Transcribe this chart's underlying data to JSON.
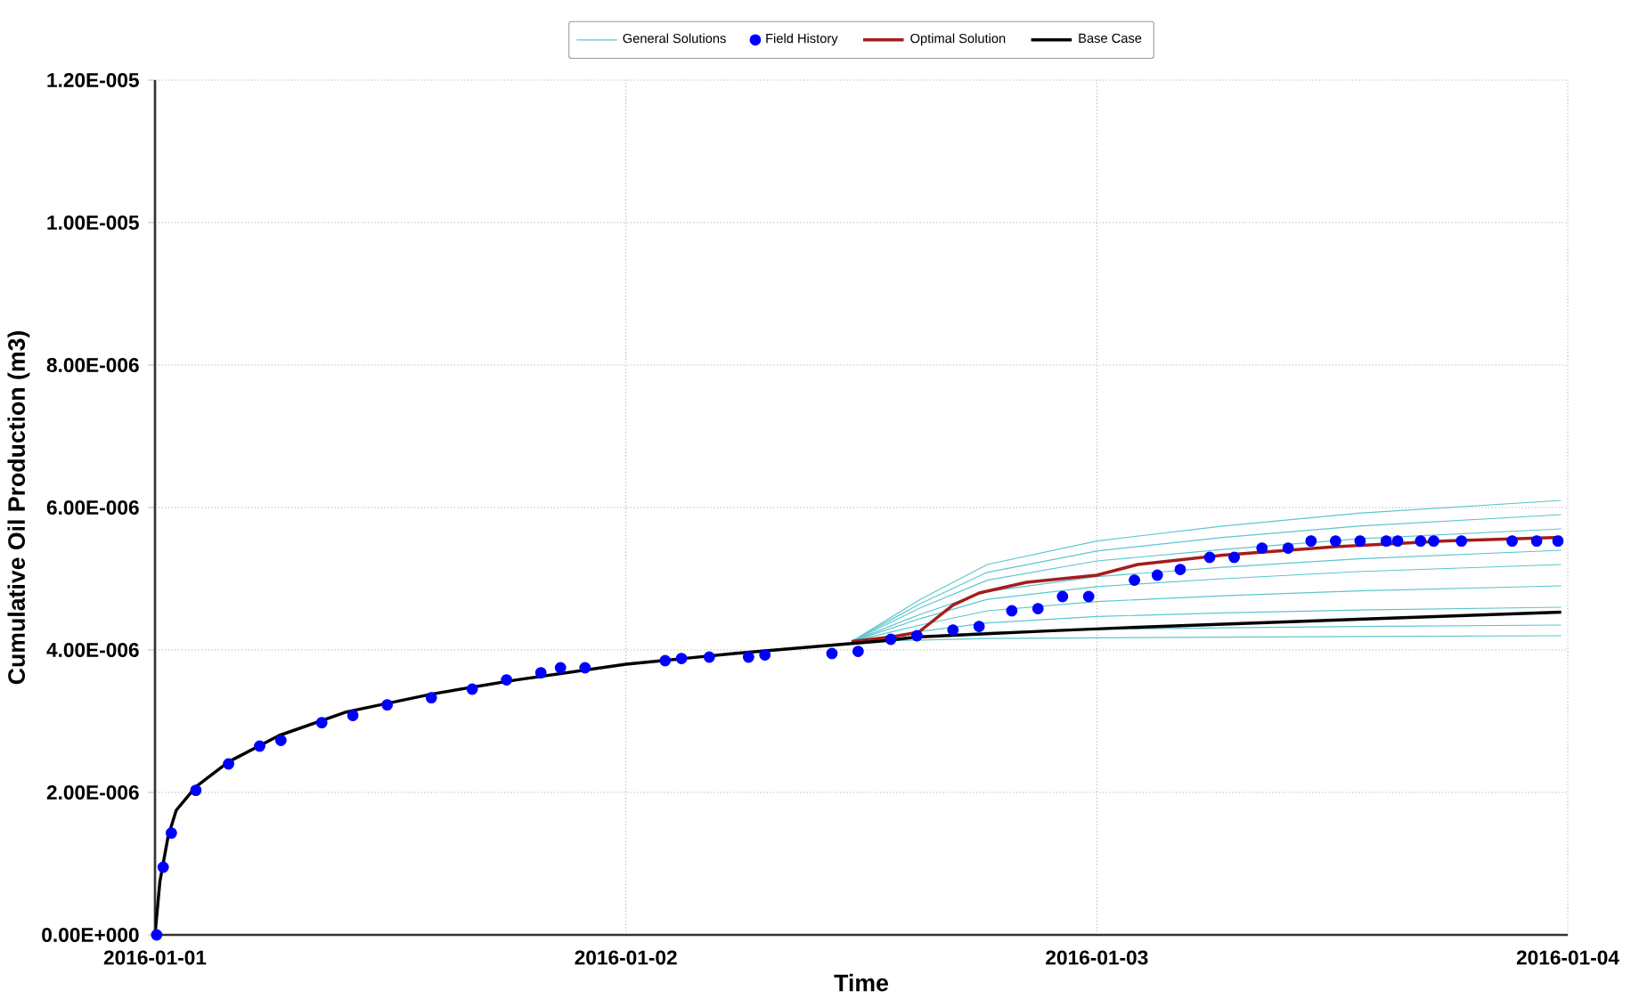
{
  "chart_data": {
    "type": "line",
    "xlabel": "Time",
    "ylabel": "Cumulative Oil Production (m3)",
    "xlim": [
      "2016-01-01",
      "2016-01-04"
    ],
    "xticks": [
      "2016-01-01",
      "2016-01-02",
      "2016-01-03",
      "2016-01-04"
    ],
    "ylim": [
      0,
      1.2e-05
    ],
    "yticks": [
      {
        "value": 0,
        "label": "0.00E+000"
      },
      {
        "value": 2e-06,
        "label": "2.00E-006"
      },
      {
        "value": 4e-06,
        "label": "4.00E-006"
      },
      {
        "value": 6e-06,
        "label": "6.00E-006"
      },
      {
        "value": 8e-06,
        "label": "8.00E-006"
      },
      {
        "value": 1e-05,
        "label": "1.00E-005"
      },
      {
        "value": 1.2e-05,
        "label": "1.20E-005"
      }
    ],
    "grid": true,
    "legend": "top",
    "series": [
      {
        "name": "General Solutions",
        "color": "#5cc6cf",
        "x": [
          "2016-01-02T11:30",
          "2016-01-02T15:00",
          "2016-01-02T18:25",
          "2016-01-03T00:00",
          "2016-01-03T06:25",
          "2016-01-03T13:20",
          "2016-01-03T23:40"
        ],
        "values": [
          4.12e-06,
          4.71e-06,
          5.2e-06,
          5.53e-06,
          5.74e-06,
          5.92e-06,
          6.1e-06
        ]
      },
      {
        "color": "#5cc6cf",
        "x": [
          "2016-01-02T11:30",
          "2016-01-02T15:00",
          "2016-01-02T18:25",
          "2016-01-03T00:00",
          "2016-01-03T06:25",
          "2016-01-03T13:20",
          "2016-01-03T23:40"
        ],
        "values": [
          4.12e-06,
          4.65e-06,
          5.09e-06,
          5.39e-06,
          5.58e-06,
          5.74e-06,
          5.9e-06
        ]
      },
      {
        "color": "#5cc6cf",
        "x": [
          "2016-01-02T11:30",
          "2016-01-02T15:00",
          "2016-01-02T18:25",
          "2016-01-03T00:00",
          "2016-01-03T06:25",
          "2016-01-03T13:20",
          "2016-01-03T23:40"
        ],
        "values": [
          4.12e-06,
          4.59e-06,
          4.98e-06,
          5.25e-06,
          5.41e-06,
          5.56e-06,
          5.7e-06
        ]
      },
      {
        "color": "#5cc6cf",
        "x": [
          "2016-01-02T11:30",
          "2016-01-02T15:00",
          "2016-01-02T18:25",
          "2016-01-03T00:00",
          "2016-01-03T06:25",
          "2016-01-03T13:20",
          "2016-01-03T23:40"
        ],
        "values": [
          4.12e-06,
          4.5e-06,
          4.82e-06,
          5.03e-06,
          5.16e-06,
          5.28e-06,
          5.4e-06
        ]
      },
      {
        "color": "#5cc6cf",
        "x": [
          "2016-01-02T11:30",
          "2016-01-02T15:00",
          "2016-01-02T18:25",
          "2016-01-03T00:00",
          "2016-01-03T06:25",
          "2016-01-03T13:20",
          "2016-01-03T23:40"
        ],
        "values": [
          4.12e-06,
          4.44e-06,
          4.71e-06,
          4.89e-06,
          5e-06,
          5.1e-06,
          5.2e-06
        ]
      },
      {
        "color": "#5cc6cf",
        "x": [
          "2016-01-02T11:30",
          "2016-01-02T15:00",
          "2016-01-02T18:25",
          "2016-01-03T00:00",
          "2016-01-03T06:25",
          "2016-01-03T13:20",
          "2016-01-03T23:40"
        ],
        "values": [
          4.12e-06,
          4.35e-06,
          4.55e-06,
          4.68e-06,
          4.76e-06,
          4.83e-06,
          4.9e-06
        ]
      },
      {
        "color": "#5cc6cf",
        "x": [
          "2016-01-02T11:30",
          "2016-01-02T15:00",
          "2016-01-02T18:25",
          "2016-01-03T00:00",
          "2016-01-03T06:25",
          "2016-01-03T13:20",
          "2016-01-03T23:40"
        ],
        "values": [
          4.12e-06,
          4.26e-06,
          4.38e-06,
          4.47e-06,
          4.52e-06,
          4.56e-06,
          4.6e-06
        ]
      },
      {
        "color": "#5cc6cf",
        "x": [
          "2016-01-02T11:30",
          "2016-01-02T15:00",
          "2016-01-02T18:25",
          "2016-01-03T00:00",
          "2016-01-03T06:25",
          "2016-01-03T13:20",
          "2016-01-03T23:40"
        ],
        "values": [
          4.12e-06,
          4.19e-06,
          4.25e-06,
          4.29e-06,
          4.31e-06,
          4.33e-06,
          4.35e-06
        ]
      },
      {
        "color": "#5cc6cf",
        "x": [
          "2016-01-02T11:30",
          "2016-01-02T15:00",
          "2016-01-02T18:25",
          "2016-01-03T00:00",
          "2016-01-03T06:25",
          "2016-01-03T13:20",
          "2016-01-03T23:40"
        ],
        "values": [
          4.12e-06,
          4.14e-06,
          4.16e-06,
          4.17e-06,
          4.18e-06,
          4.19e-06,
          4.2e-06
        ]
      },
      {
        "name": "Field History",
        "type": "scatter",
        "marker": "circle",
        "color": "#0000ff",
        "x": [
          "2016-01-01T00:05",
          "2016-01-01T00:25",
          "2016-01-01T00:50",
          "2016-01-01T02:05",
          "2016-01-01T03:45",
          "2016-01-01T05:20",
          "2016-01-01T06:25",
          "2016-01-01T08:30",
          "2016-01-01T10:05",
          "2016-01-01T11:50",
          "2016-01-01T14:05",
          "2016-01-01T16:10",
          "2016-01-01T17:55",
          "2016-01-01T19:40",
          "2016-01-01T20:40",
          "2016-01-01T21:55",
          "2016-01-02T02:00",
          "2016-01-02T02:50",
          "2016-01-02T04:15",
          "2016-01-02T06:15",
          "2016-01-02T07:05",
          "2016-01-02T10:30",
          "2016-01-02T11:50",
          "2016-01-02T13:30",
          "2016-01-02T14:50",
          "2016-01-02T16:40",
          "2016-01-02T18:00",
          "2016-01-02T19:40",
          "2016-01-02T21:00",
          "2016-01-02T22:15",
          "2016-01-02T23:35",
          "2016-01-03T01:55",
          "2016-01-03T03:05",
          "2016-01-03T04:15",
          "2016-01-03T05:45",
          "2016-01-03T07:00",
          "2016-01-03T08:25",
          "2016-01-03T09:45",
          "2016-01-03T10:55",
          "2016-01-03T12:10",
          "2016-01-03T13:25",
          "2016-01-03T14:45",
          "2016-01-03T15:20",
          "2016-01-03T16:30",
          "2016-01-03T17:10",
          "2016-01-03T18:35",
          "2016-01-03T21:10",
          "2016-01-03T22:25",
          "2016-01-03T23:30"
        ],
        "values": [
          0.0,
          9.5e-07,
          1.43e-06,
          2.03e-06,
          2.4e-06,
          2.65e-06,
          2.73e-06,
          2.98e-06,
          3.08e-06,
          3.23e-06,
          3.33e-06,
          3.45e-06,
          3.58e-06,
          3.68e-06,
          3.75e-06,
          3.75e-06,
          3.85e-06,
          3.88e-06,
          3.9e-06,
          3.9e-06,
          3.93e-06,
          3.95e-06,
          3.98e-06,
          4.15e-06,
          4.2e-06,
          4.28e-06,
          4.33e-06,
          4.55e-06,
          4.58e-06,
          4.75e-06,
          4.75e-06,
          4.98e-06,
          5.05e-06,
          5.13e-06,
          5.3e-06,
          5.3e-06,
          5.43e-06,
          5.43e-06,
          5.53e-06,
          5.53e-06,
          5.53e-06,
          5.53e-06,
          5.53e-06,
          5.53e-06,
          5.53e-06,
          5.53e-06,
          5.53e-06,
          5.53e-06,
          5.53e-06
        ]
      },
      {
        "name": "Optimal Solution",
        "color": "#a51c1c",
        "x": [
          "2016-01-02T11:30",
          "2016-01-02T13:30",
          "2016-01-02T14:55",
          "2016-01-02T16:40",
          "2016-01-02T18:00",
          "2016-01-02T20:25",
          "2016-01-03T00:00",
          "2016-01-03T02:05",
          "2016-01-03T06:25",
          "2016-01-03T12:10",
          "2016-01-03T17:50",
          "2016-01-03T23:40"
        ],
        "values": [
          4.12e-06,
          4.18e-06,
          4.25e-06,
          4.63e-06,
          4.8e-06,
          4.95e-06,
          5.05e-06,
          5.2e-06,
          5.33e-06,
          5.45e-06,
          5.53e-06,
          5.58e-06
        ]
      },
      {
        "name": "Base Case",
        "color": "#000000",
        "x": [
          "2016-01-01T00:00",
          "2016-01-01T00:15",
          "2016-01-01T00:40",
          "2016-01-01T01:05",
          "2016-01-01T02:05",
          "2016-01-01T03:45",
          "2016-01-01T06:20",
          "2016-01-01T09:45",
          "2016-01-01T14:05",
          "2016-01-01T18:25",
          "2016-01-02T00:00",
          "2016-01-02T05:30",
          "2016-01-02T09:45",
          "2016-01-02T13:15",
          "2016-01-02T14:45",
          "2016-01-02T21:45",
          "2016-01-03T02:05",
          "2016-01-03T13:20",
          "2016-01-03T23:40"
        ],
        "values": [
          0.0,
          7.5e-07,
          1.38e-06,
          1.75e-06,
          2.08e-06,
          2.43e-06,
          2.8e-06,
          3.13e-06,
          3.38e-06,
          3.58e-06,
          3.8e-06,
          3.95e-06,
          4.05e-06,
          4.13e-06,
          4.18e-06,
          4.27e-06,
          4.32e-06,
          4.43e-06,
          4.53e-06
        ]
      }
    ]
  }
}
